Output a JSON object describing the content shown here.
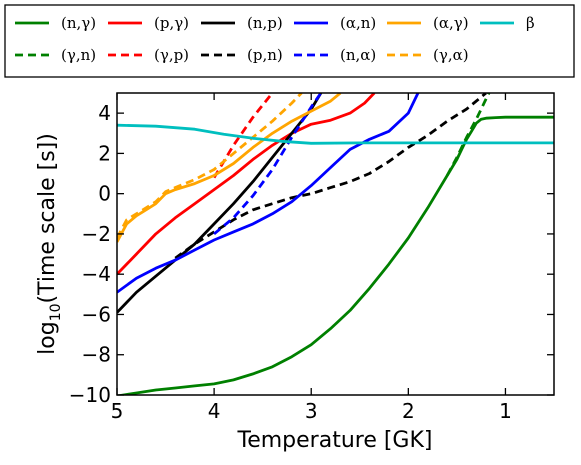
{
  "chart_data": {
    "type": "line",
    "xlabel": "Temperature [GK]",
    "ylabel_parts": {
      "prefix": "log",
      "subscript": "10",
      "suffix": "(Time scale [s])"
    },
    "xlim": [
      5,
      0.5
    ],
    "ylim": [
      -10,
      5
    ],
    "xticks": [
      5,
      4,
      3,
      2,
      1
    ],
    "xtick_labels": [
      "5",
      "4",
      "3",
      "2",
      "1"
    ],
    "yticks": [
      -10,
      -8,
      -6,
      -4,
      -2,
      0,
      2,
      4
    ],
    "ytick_labels": [
      "−10",
      "−8",
      "−6",
      "−4",
      "−2",
      "0",
      "2",
      "4"
    ],
    "grid": false,
    "legend_position": "top",
    "series": [
      {
        "name": "(n,γ)",
        "color": "#008000",
        "dash": "solid",
        "x": [
          5,
          4.8,
          4.6,
          4.4,
          4.2,
          4.0,
          3.8,
          3.6,
          3.4,
          3.2,
          3.0,
          2.8,
          2.6,
          2.4,
          2.2,
          2.0,
          1.8,
          1.6,
          1.5,
          1.45,
          1.4,
          1.35,
          1.3,
          1.25,
          1.2,
          1.1,
          1.0,
          0.8,
          0.5
        ],
        "y": [
          -10.05,
          -9.9,
          -9.75,
          -9.65,
          -9.55,
          -9.45,
          -9.25,
          -8.95,
          -8.6,
          -8.1,
          -7.5,
          -6.7,
          -5.8,
          -4.7,
          -3.5,
          -2.2,
          -0.7,
          0.9,
          1.7,
          2.2,
          2.7,
          3.1,
          3.5,
          3.7,
          3.75,
          3.78,
          3.8,
          3.8,
          3.8
        ]
      },
      {
        "name": "(γ,n)",
        "color": "#008000",
        "dash": "dashed",
        "x": [
          1.6,
          1.5,
          1.4,
          1.3,
          1.25,
          1.2,
          1.15
        ],
        "y": [
          0.9,
          1.8,
          2.8,
          3.7,
          4.2,
          4.7,
          5.2
        ]
      },
      {
        "name": "(p,γ)",
        "color": "#ff0000",
        "dash": "solid",
        "x": [
          5,
          4.8,
          4.6,
          4.4,
          4.2,
          4.0,
          3.8,
          3.6,
          3.4,
          3.2,
          3.0,
          2.8,
          2.6,
          2.45,
          2.35
        ],
        "y": [
          -4.0,
          -3.0,
          -2.0,
          -1.2,
          -0.5,
          0.2,
          0.9,
          1.7,
          2.4,
          3.0,
          3.45,
          3.65,
          4.0,
          4.5,
          5.0
        ]
      },
      {
        "name": "(γ,p)",
        "color": "#ff0000",
        "dash": "dashed",
        "x": [
          4.0,
          3.9,
          3.8,
          3.7,
          3.6,
          3.5,
          3.4
        ],
        "y": [
          0.8,
          1.6,
          2.4,
          3.1,
          3.8,
          4.4,
          5.0
        ]
      },
      {
        "name": "(n,p)",
        "color": "#000000",
        "dash": "solid",
        "x": [
          5,
          4.8,
          4.6,
          4.4,
          4.2,
          4.0,
          3.8,
          3.6,
          3.4,
          3.2,
          3.0,
          2.9
        ],
        "y": [
          -5.9,
          -4.9,
          -4.1,
          -3.3,
          -2.5,
          -1.5,
          -0.5,
          0.6,
          1.8,
          3.0,
          4.2,
          5.0
        ]
      },
      {
        "name": "(p,n)",
        "color": "#000000",
        "dash": "dashed",
        "x": [
          4.4,
          4.2,
          4.0,
          3.8,
          3.6,
          3.4,
          3.2,
          3.0,
          2.8,
          2.6,
          2.4,
          2.2,
          2.0,
          1.8,
          1.6,
          1.4,
          1.2
        ],
        "y": [
          -3.2,
          -2.5,
          -1.9,
          -1.3,
          -0.8,
          -0.5,
          -0.2,
          0.0,
          0.3,
          0.6,
          1.0,
          1.6,
          2.3,
          2.9,
          3.6,
          4.2,
          5.0
        ]
      },
      {
        "name": "(α,n)",
        "color": "#0000ff",
        "dash": "solid",
        "x": [
          5,
          4.8,
          4.6,
          4.4,
          4.2,
          4.0,
          3.8,
          3.6,
          3.4,
          3.2,
          3.0,
          2.8,
          2.6,
          2.4,
          2.2,
          2.0,
          1.9
        ],
        "y": [
          -4.9,
          -4.2,
          -3.7,
          -3.3,
          -2.8,
          -2.3,
          -1.9,
          -1.5,
          -1.0,
          -0.4,
          0.4,
          1.3,
          2.2,
          2.7,
          3.1,
          4.0,
          5.0
        ]
      },
      {
        "name": "(n,α)",
        "color": "#0000ff",
        "dash": "dashed",
        "x": [
          4.0,
          3.8,
          3.6,
          3.4,
          3.2,
          3.0,
          2.9
        ],
        "y": [
          -2.0,
          -1.2,
          -0.1,
          1.2,
          2.8,
          4.3,
          5.0
        ]
      },
      {
        "name": "(α,γ)",
        "color": "#ffa500",
        "dash": "solid",
        "x": [
          5,
          4.9,
          4.8,
          4.7,
          4.6,
          4.5,
          4.4,
          4.2,
          4.0,
          3.8,
          3.6,
          3.4,
          3.2,
          3.0,
          2.8,
          2.7
        ],
        "y": [
          -2.4,
          -1.5,
          -1.1,
          -0.8,
          -0.5,
          0.0,
          0.2,
          0.5,
          0.9,
          1.5,
          2.3,
          3.0,
          3.6,
          4.1,
          4.6,
          5.0
        ]
      },
      {
        "name": "(γ,α)",
        "color": "#ffa500",
        "dash": "dashed",
        "x": [
          5,
          4.9,
          4.8,
          4.7,
          4.6,
          4.5,
          4.4,
          4.2,
          4.0,
          3.8,
          3.6,
          3.4,
          3.2,
          3.1
        ],
        "y": [
          -2.2,
          -1.3,
          -1.0,
          -0.7,
          -0.4,
          0.1,
          0.3,
          0.7,
          1.2,
          2.0,
          2.8,
          3.6,
          4.5,
          5.0
        ]
      },
      {
        "name": "β",
        "color": "#00bfbf",
        "dash": "solid",
        "x": [
          5,
          4.6,
          4.2,
          3.9,
          3.6,
          3.3,
          3.0,
          2.5,
          2.0,
          1.5,
          1.0,
          0.5
        ],
        "y": [
          3.4,
          3.35,
          3.2,
          2.95,
          2.75,
          2.6,
          2.5,
          2.52,
          2.52,
          2.52,
          2.52,
          2.52
        ]
      }
    ]
  }
}
